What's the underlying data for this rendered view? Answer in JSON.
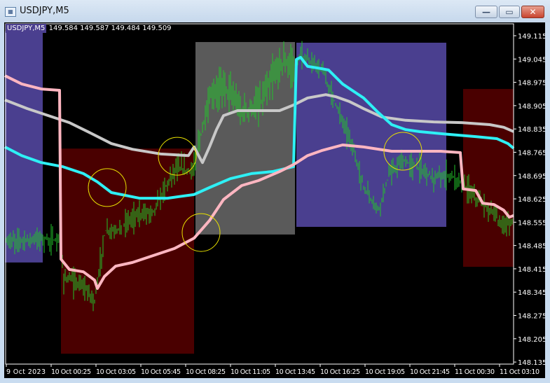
{
  "window": {
    "title": "USDJPY,M5",
    "buttons": [
      "minimize",
      "maximize",
      "close"
    ]
  },
  "chart": {
    "symbol_label": "USDJPY,M5",
    "ohlc": "149.584 149.587 149.484 149.509",
    "colors": {
      "background": "#000000",
      "bars": "#22c52a",
      "box_asia": "#4a3f8f",
      "box_london": "#5a5a5a",
      "box_ny": "#4a0000",
      "ma_pink": "#ffb6c1",
      "ma_gray": "#c8c8c8",
      "ma_cyan": "#2ef0f5",
      "circle": "#e8e000",
      "axis_text": "#ffffff"
    },
    "price_axis": [
      "149.115",
      "149.045",
      "148.975",
      "148.905",
      "148.835",
      "148.765",
      "148.695",
      "148.625",
      "148.555",
      "148.485",
      "148.415",
      "148.345",
      "148.275",
      "148.205",
      "148.135"
    ],
    "time_axis": [
      "9 Oct 2023",
      "10 Oct 00:25",
      "10 Oct 03:05",
      "10 Oct 05:45",
      "10 Oct 08:25",
      "10 Oct 11:05",
      "10 Oct 13:45",
      "10 Oct 16:25",
      "10 Oct 19:05",
      "10 Oct 21:45",
      "11 Oct 00:30",
      "11 Oct 03:10"
    ],
    "boxes": [
      {
        "from": "10-09 21:40",
        "to": "10-09 23:55",
        "high": 149.128,
        "low": 148.434,
        "color": "#4a3f8f"
      },
      {
        "from": "10-10 01:00",
        "to": "10-10 08:55",
        "high": 148.776,
        "low": 148.16,
        "color": "#4a0000"
      },
      {
        "from": "10-10 09:00",
        "to": "10-10 14:55",
        "high": 149.096,
        "low": 148.518,
        "color": "#5a5a5a"
      },
      {
        "from": "10-10 15:00",
        "to": "10-10 23:55",
        "high": 149.094,
        "low": 148.541,
        "color": "#4a3f8f"
      },
      {
        "from": "10-11 00:55",
        "to": "10-11 03:55",
        "high": 148.955,
        "low": 148.421,
        "color": "#4a0000"
      }
    ],
    "moving_averages": [
      {
        "color": "#c8c8c8",
        "points": [
          [
            "10-09 21:40",
            148.922
          ],
          [
            "10-09 23:00",
            148.896
          ],
          [
            "10-10 00:15",
            148.875
          ],
          [
            "10-10 01:30",
            148.854
          ],
          [
            "10-10 02:45",
            148.823
          ],
          [
            "10-10 04:00",
            148.791
          ],
          [
            "10-10 05:15",
            148.774
          ],
          [
            "10-10 06:55",
            148.76
          ],
          [
            "10-10 08:35",
            148.755
          ],
          [
            "10-10 08:55",
            148.781
          ],
          [
            "10-10 09:15",
            148.749
          ],
          [
            "10-10 09:25",
            148.734
          ],
          [
            "10-10 09:50",
            148.781
          ],
          [
            "10-10 10:15",
            148.833
          ],
          [
            "10-10 10:40",
            148.875
          ],
          [
            "10-10 11:30",
            148.89
          ],
          [
            "10-10 12:45",
            148.89
          ],
          [
            "10-10 14:00",
            148.89
          ],
          [
            "10-10 14:50",
            148.907
          ],
          [
            "10-10 15:40",
            148.928
          ],
          [
            "10-10 16:45",
            148.938
          ],
          [
            "10-10 17:20",
            148.932
          ],
          [
            "10-10 18:10",
            148.917
          ],
          [
            "10-10 19:00",
            148.896
          ],
          [
            "10-10 20:05",
            148.871
          ],
          [
            "10-10 21:30",
            148.861
          ],
          [
            "10-10 23:10",
            148.856
          ],
          [
            "10-11 00:50",
            148.854
          ],
          [
            "10-11 02:30",
            148.848
          ],
          [
            "10-11 03:20",
            148.84
          ],
          [
            "10-11 03:55",
            148.827
          ]
        ]
      },
      {
        "color": "#2ef0f5",
        "points": [
          [
            "10-09 21:40",
            148.781
          ],
          [
            "10-09 22:40",
            148.755
          ],
          [
            "10-09 23:50",
            148.734
          ],
          [
            "10-10 01:05",
            148.722
          ],
          [
            "10-10 02:20",
            148.701
          ],
          [
            "10-10 03:10",
            148.676
          ],
          [
            "10-10 04:00",
            148.644
          ],
          [
            "10-10 05:40",
            148.627
          ],
          [
            "10-10 07:20",
            148.627
          ],
          [
            "10-10 08:55",
            148.638
          ],
          [
            "10-10 09:50",
            148.659
          ],
          [
            "10-10 11:05",
            148.686
          ],
          [
            "10-10 12:20",
            148.701
          ],
          [
            "10-10 13:35",
            148.707
          ],
          [
            "10-10 14:50",
            148.722
          ],
          [
            "10-10 15:00",
            149.044
          ],
          [
            "10-10 15:15",
            149.05
          ],
          [
            "10-10 15:40",
            149.023
          ],
          [
            "10-10 16:30",
            149.016
          ],
          [
            "10-10 16:55",
            149.012
          ],
          [
            "10-10 17:45",
            148.97
          ],
          [
            "10-10 19:00",
            148.928
          ],
          [
            "10-10 19:50",
            148.886
          ],
          [
            "10-10 20:40",
            148.848
          ],
          [
            "10-10 21:30",
            148.833
          ],
          [
            "10-10 22:20",
            148.827
          ],
          [
            "10-11 00:00",
            148.819
          ],
          [
            "10-11 01:40",
            148.812
          ],
          [
            "10-11 02:55",
            148.806
          ],
          [
            "10-11 03:35",
            148.791
          ],
          [
            "10-11 03:55",
            148.777
          ]
        ]
      },
      {
        "color": "#ffb6c1",
        "points": [
          [
            "10-09 21:40",
            148.995
          ],
          [
            "10-09 22:40",
            148.97
          ],
          [
            "10-09 23:50",
            148.955
          ],
          [
            "10-10 00:55",
            148.951
          ],
          [
            "10-10 01:00",
            148.444
          ],
          [
            "10-10 01:30",
            148.413
          ],
          [
            "10-10 02:20",
            148.406
          ],
          [
            "10-10 03:00",
            148.381
          ],
          [
            "10-10 03:10",
            148.356
          ],
          [
            "10-10 03:35",
            148.392
          ],
          [
            "10-10 04:15",
            148.423
          ],
          [
            "10-10 05:15",
            148.434
          ],
          [
            "10-10 06:30",
            148.455
          ],
          [
            "10-10 07:45",
            148.476
          ],
          [
            "10-10 08:55",
            148.507
          ],
          [
            "10-10 09:50",
            148.56
          ],
          [
            "10-10 10:40",
            148.623
          ],
          [
            "10-10 11:45",
            148.665
          ],
          [
            "10-10 12:45",
            148.68
          ],
          [
            "10-10 14:00",
            148.707
          ],
          [
            "10-10 14:50",
            148.728
          ],
          [
            "10-10 15:40",
            148.755
          ],
          [
            "10-10 16:30",
            148.77
          ],
          [
            "10-10 17:45",
            148.787
          ],
          [
            "10-10 19:00",
            148.781
          ],
          [
            "10-10 20:40",
            148.768
          ],
          [
            "10-10 22:20",
            148.768
          ],
          [
            "10-10 23:35",
            148.768
          ],
          [
            "10-11 00:45",
            148.764
          ],
          [
            "10-11 00:55",
            148.655
          ],
          [
            "10-11 01:40",
            148.65
          ],
          [
            "10-11 02:05",
            148.612
          ],
          [
            "10-11 02:45",
            148.608
          ],
          [
            "10-11 03:20",
            148.591
          ],
          [
            "10-11 03:40",
            148.57
          ],
          [
            "10-11 03:55",
            148.575
          ]
        ]
      }
    ],
    "circles": [
      {
        "time": "10-10 03:45",
        "price": 148.659
      },
      {
        "time": "10-10 07:55",
        "price": 148.753
      },
      {
        "time": "10-10 09:20",
        "price": 148.524
      },
      {
        "time": "10-10 21:20",
        "price": 148.768
      }
    ]
  }
}
